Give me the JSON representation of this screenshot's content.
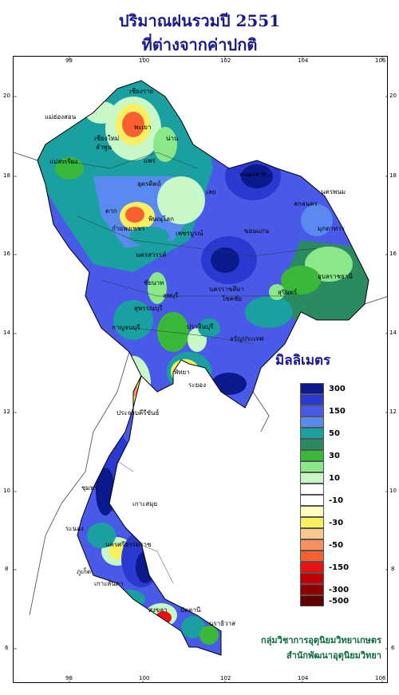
{
  "title_line1": "ปริมาณฝนรวมปี 2551",
  "title_line2": "ที่ต่างจากค่าปกติ",
  "axis": {
    "top_ticks": [
      "98",
      "100",
      "102",
      "104",
      "106"
    ],
    "bottom_ticks": [
      "98",
      "100",
      "102",
      "104",
      "106"
    ],
    "left_ticks": [
      "20",
      "18",
      "16",
      "14",
      "12",
      "10",
      "8",
      "6"
    ],
    "right_ticks": [
      "20",
      "18",
      "16",
      "14",
      "12",
      "10",
      "8",
      "6"
    ]
  },
  "legend": {
    "title": "มิลลิเมตร",
    "items": [
      {
        "label": "300",
        "color": "#0a1a8c"
      },
      {
        "label": "",
        "color": "#2a3ad0"
      },
      {
        "label": "150",
        "color": "#4a5ae8"
      },
      {
        "label": "",
        "color": "#5a8af0"
      },
      {
        "label": "50",
        "color": "#1aa0a0"
      },
      {
        "label": "",
        "color": "#2a8a60"
      },
      {
        "label": "30",
        "color": "#3ab83a"
      },
      {
        "label": "",
        "color": "#8ae88a"
      },
      {
        "label": "10",
        "color": "#c8f8c8"
      },
      {
        "label": "",
        "color": "#ffffff"
      },
      {
        "label": "-10",
        "color": "#ffffff"
      },
      {
        "label": "",
        "color": "#ffffc0"
      },
      {
        "label": "-30",
        "color": "#f8f060"
      },
      {
        "label": "",
        "color": "#f8c890"
      },
      {
        "label": "-50",
        "color": "#f89060"
      },
      {
        "label": "",
        "color": "#f86030"
      },
      {
        "label": "-150",
        "color": "#e81010"
      },
      {
        "label": "",
        "color": "#c00000"
      },
      {
        "label": "-300",
        "color": "#900000"
      },
      {
        "label": "-500",
        "color": "#600000"
      }
    ]
  },
  "places": [
    {
      "name": "เชียงราย"
    },
    {
      "name": "แม่ฮ่องสอน"
    },
    {
      "name": "พะเยา"
    },
    {
      "name": "เชียงใหม่"
    },
    {
      "name": "ลำพูน"
    },
    {
      "name": "น่าน"
    },
    {
      "name": "แพร่"
    },
    {
      "name": "แม่สะเรียง"
    },
    {
      "name": "อุตรดิตถ์"
    },
    {
      "name": "หนองคาย"
    },
    {
      "name": "นครพนม"
    },
    {
      "name": "เลย"
    },
    {
      "name": "สกลนคร"
    },
    {
      "name": "ตาก"
    },
    {
      "name": "พิษณุโลก"
    },
    {
      "name": "มุกดาหาร"
    },
    {
      "name": "กำแพงเพชร"
    },
    {
      "name": "ขอนแก่น"
    },
    {
      "name": "เพชรบูรณ์"
    },
    {
      "name": "นครสวรรค์"
    },
    {
      "name": "ชัยนาท"
    },
    {
      "name": "อุบลราชธานี"
    },
    {
      "name": "นครราชสีมา"
    },
    {
      "name": "สุรินทร์"
    },
    {
      "name": "ลพบุรี"
    },
    {
      "name": "สุพรรณบุรี"
    },
    {
      "name": "กาญจนบุรี"
    },
    {
      "name": "โชคชัย"
    },
    {
      "name": "อรัญประเทศ"
    },
    {
      "name": "ปราจีนบุรี"
    },
    {
      "name": "พัทยา"
    },
    {
      "name": "ระยอง"
    },
    {
      "name": "ประจวบคีรีขันธ์"
    },
    {
      "name": "ชุมพร"
    },
    {
      "name": "ระนอง"
    },
    {
      "name": "เกาะสมุย"
    },
    {
      "name": "นครศรีธรรมราช"
    },
    {
      "name": "ภูเก็ต"
    },
    {
      "name": "เกาะลันตา"
    },
    {
      "name": "สงขลา"
    },
    {
      "name": "ปัตตานี"
    },
    {
      "name": "นราธิวาส"
    }
  ],
  "credit_line1": "กลุ่มวิชาการอุตุนิยมวิทยาเกษตร",
  "credit_line2": "สำนักพัฒนาอุตุนิยมวิทยา"
}
